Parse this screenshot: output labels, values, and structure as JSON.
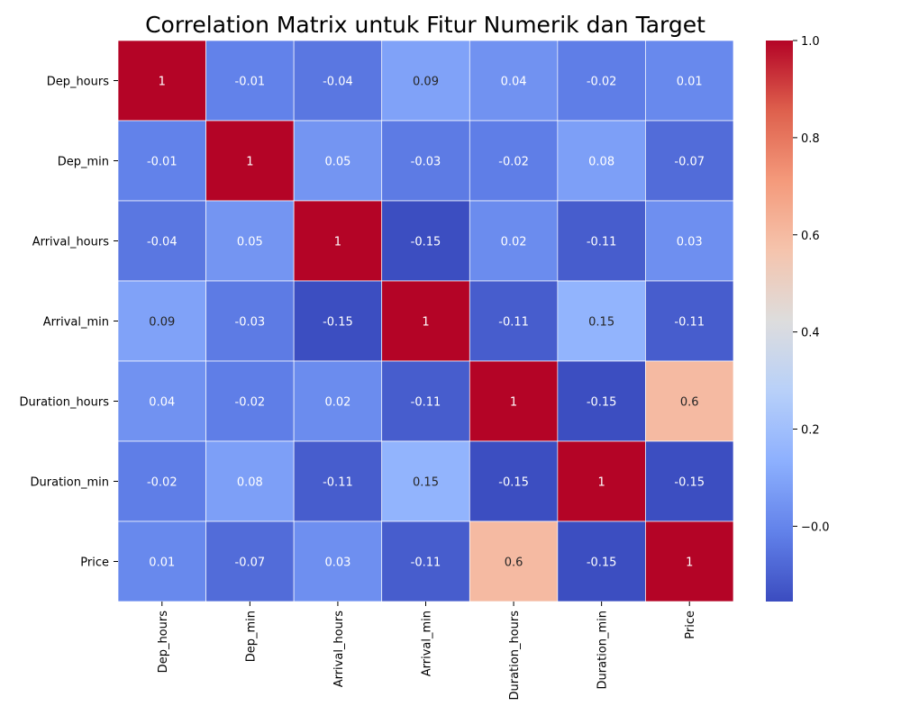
{
  "chart_data": {
    "type": "heatmap",
    "title": "Correlation Matrix untuk Fitur Numerik dan Target",
    "labels": [
      "Dep_hours",
      "Dep_min",
      "Arrival_hours",
      "Arrival_min",
      "Duration_hours",
      "Duration_min",
      "Price"
    ],
    "matrix": [
      [
        1,
        -0.01,
        -0.04,
        0.09,
        0.04,
        -0.02,
        0.01
      ],
      [
        -0.01,
        1,
        0.05,
        -0.03,
        -0.02,
        0.08,
        -0.07
      ],
      [
        -0.04,
        0.05,
        1,
        -0.15,
        0.02,
        -0.11,
        0.03
      ],
      [
        0.09,
        -0.03,
        -0.15,
        1,
        -0.11,
        0.15,
        -0.11
      ],
      [
        0.04,
        -0.02,
        0.02,
        -0.11,
        1,
        -0.15,
        0.6
      ],
      [
        -0.02,
        0.08,
        -0.11,
        0.15,
        -0.15,
        1,
        -0.15
      ],
      [
        0.01,
        -0.07,
        0.03,
        -0.11,
        0.6,
        -0.15,
        1
      ]
    ],
    "colormap": "coolwarm",
    "colorbar": {
      "min": -0.155,
      "max": 1.0,
      "ticks": [
        -0.0,
        0.2,
        0.4,
        0.6,
        0.8,
        1.0
      ],
      "tick_labels": [
        "−0.0",
        "0.2",
        "0.4",
        "0.6",
        "0.8",
        "1.0"
      ]
    },
    "annotations": true,
    "cell_border_color": "#ffffff"
  }
}
